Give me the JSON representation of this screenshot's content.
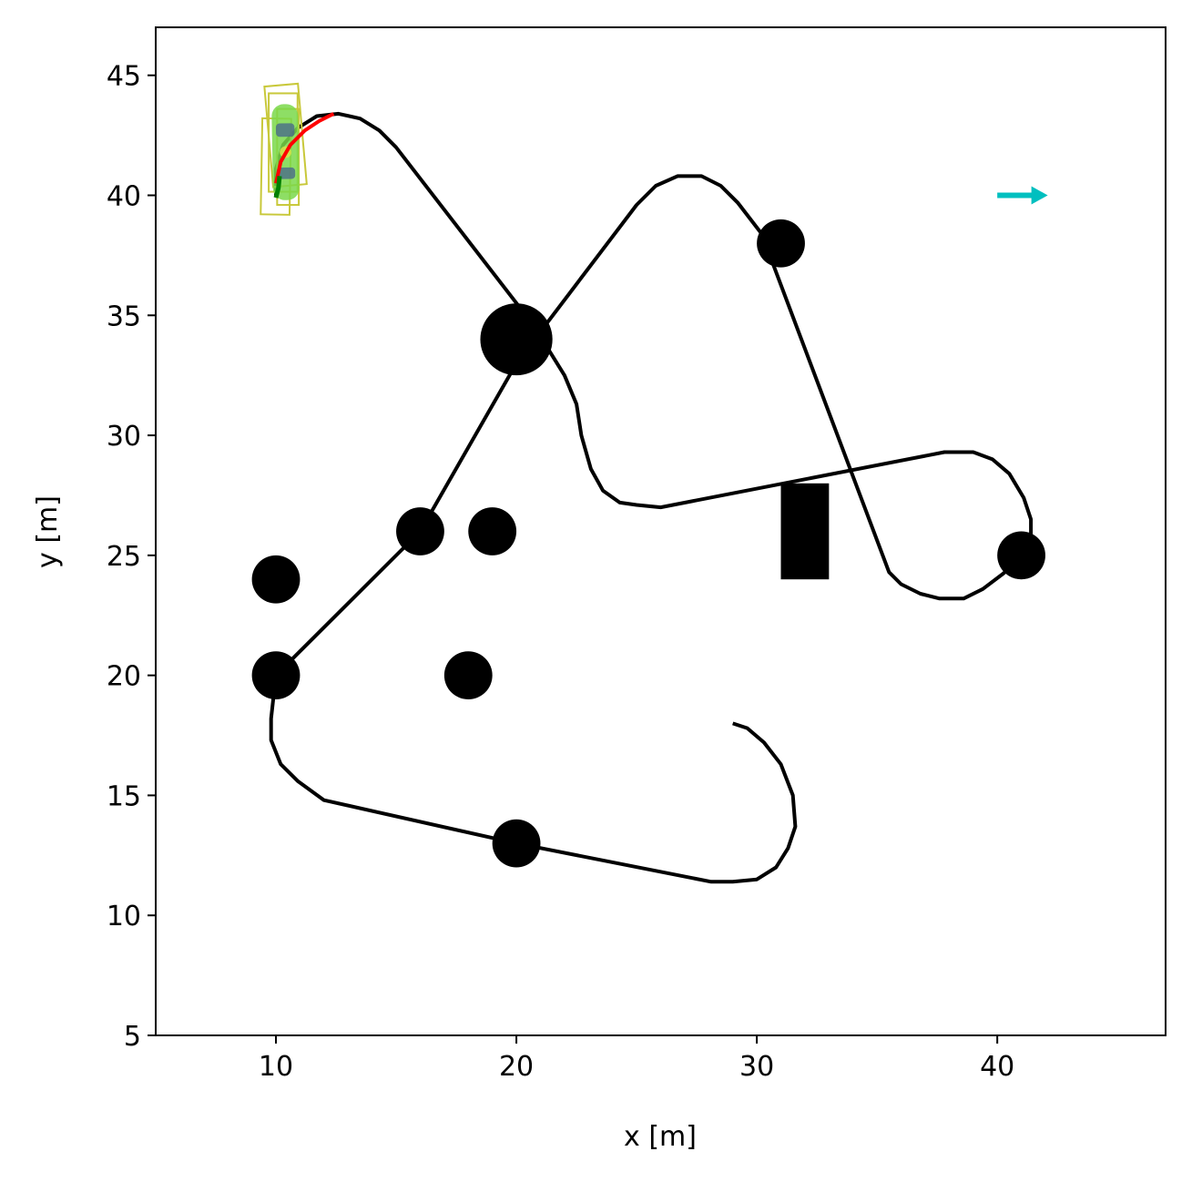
{
  "chart_data": {
    "type": "scatter",
    "title": "",
    "xlabel": "x [m]",
    "ylabel": "y [m]",
    "xlim": [
      5,
      47
    ],
    "ylim": [
      5,
      47
    ],
    "grid": false,
    "xticks": [
      10,
      20,
      30,
      40
    ],
    "yticks": [
      5,
      10,
      15,
      20,
      25,
      30,
      35,
      40,
      45
    ],
    "reference_path": {
      "color": "#000000",
      "points": [
        [
          29,
          18
        ],
        [
          29.6,
          17.8
        ],
        [
          30.3,
          17.2
        ],
        [
          31,
          16.3
        ],
        [
          31.5,
          15
        ],
        [
          31.6,
          13.7
        ],
        [
          31.3,
          12.8
        ],
        [
          30.8,
          12
        ],
        [
          30,
          11.5
        ],
        [
          29,
          11.4
        ],
        [
          28.1,
          11.4
        ],
        [
          20,
          13
        ],
        [
          12,
          14.8
        ],
        [
          10.9,
          15.6
        ],
        [
          10.2,
          16.3
        ],
        [
          9.8,
          17.3
        ],
        [
          9.8,
          18.2
        ],
        [
          10,
          20
        ],
        [
          16,
          26
        ],
        [
          20,
          33
        ],
        [
          25,
          39.6
        ],
        [
          25.8,
          40.4
        ],
        [
          26.7,
          40.8
        ],
        [
          27.7,
          40.8
        ],
        [
          28.5,
          40.4
        ],
        [
          29.2,
          39.7
        ],
        [
          30.2,
          38.4
        ],
        [
          35.5,
          24.3
        ],
        [
          36,
          23.8
        ],
        [
          36.8,
          23.4
        ],
        [
          37.6,
          23.2
        ],
        [
          38.6,
          23.2
        ],
        [
          39.4,
          23.6
        ],
        [
          40.2,
          24.2
        ],
        [
          41.4,
          25.2
        ],
        [
          41.4,
          26.5
        ],
        [
          41.1,
          27.4
        ],
        [
          40.5,
          28.4
        ],
        [
          39.8,
          29
        ],
        [
          39,
          29.3
        ],
        [
          37.8,
          29.3
        ],
        [
          26,
          27
        ],
        [
          25,
          27.1
        ],
        [
          24.3,
          27.2
        ],
        [
          23.6,
          27.7
        ],
        [
          23.1,
          28.6
        ],
        [
          22.7,
          30
        ],
        [
          22.5,
          31.3
        ],
        [
          22,
          32.5
        ],
        [
          20.7,
          34.6
        ],
        [
          15,
          42
        ],
        [
          14.3,
          42.7
        ],
        [
          13.5,
          43.2
        ],
        [
          12.6,
          43.4
        ],
        [
          11.7,
          43.3
        ],
        [
          10.9,
          42.8
        ],
        [
          10.3,
          42.1
        ],
        [
          10,
          41.1
        ],
        [
          10,
          40
        ]
      ]
    },
    "planned_path": {
      "color": "#ff0000",
      "points": [
        [
          10,
          40.5
        ],
        [
          10.2,
          41.4
        ],
        [
          10.6,
          42.1
        ],
        [
          11.2,
          42.7
        ],
        [
          11.8,
          43.1
        ],
        [
          12.4,
          43.4
        ]
      ]
    },
    "executed_path": {
      "color": "#008000",
      "points": [
        [
          10,
          39.9
        ],
        [
          10.1,
          40.3
        ],
        [
          10.15,
          40.8
        ]
      ]
    },
    "circle_obstacles": [
      {
        "x": 20,
        "y": 34,
        "r": 1.5
      },
      {
        "x": 31,
        "y": 38,
        "r": 1
      },
      {
        "x": 41,
        "y": 25,
        "r": 1
      },
      {
        "x": 10,
        "y": 24,
        "r": 1
      },
      {
        "x": 10,
        "y": 20,
        "r": 1
      },
      {
        "x": 16,
        "y": 26,
        "r": 1
      },
      {
        "x": 19,
        "y": 26,
        "r": 1
      },
      {
        "x": 18,
        "y": 20,
        "r": 1
      },
      {
        "x": 20,
        "y": 13,
        "r": 1
      }
    ],
    "rect_obstacles": [
      {
        "x": 31,
        "y": 24,
        "width": 2,
        "height": 4
      }
    ],
    "vehicle": {
      "x": 10.4,
      "y": 41.8,
      "width": 1.1,
      "length": 4,
      "heading_deg": 91,
      "body_color": "#7ad84a",
      "outline_color": "#c8c83a"
    },
    "footprint_boxes": [
      {
        "cx": 10.4,
        "cy": 42.5,
        "w": 1.4,
        "h": 4.2,
        "angle": -5
      },
      {
        "cx": 10.3,
        "cy": 42.2,
        "w": 1.2,
        "h": 4.1,
        "angle": 0
      },
      {
        "cx": 10,
        "cy": 41.2,
        "w": 1.2,
        "h": 4,
        "angle": 1
      },
      {
        "cx": 10.5,
        "cy": 41.6,
        "w": 0.9,
        "h": 4,
        "angle": 0
      }
    ],
    "goal_arrow": {
      "x": 40,
      "y": 40,
      "dx": 2.1,
      "dy": 0,
      "color": "#00bfbf"
    }
  }
}
